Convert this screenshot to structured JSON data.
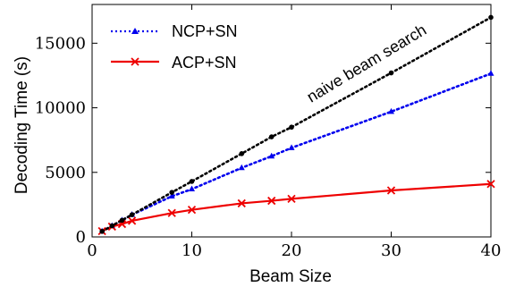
{
  "chart_data": {
    "type": "line",
    "xlabel": "Beam Size",
    "ylabel": "Decoding Time (s)",
    "xlim": [
      0,
      40
    ],
    "ylim": [
      0,
      18000
    ],
    "xticks": [
      "0",
      "10",
      "20",
      "30",
      "40"
    ],
    "yticks": [
      "0",
      "5000",
      "10000",
      "15000"
    ],
    "legend_position": "top-left",
    "annotation": "naive beam search",
    "series": [
      {
        "name": "NCP+SN",
        "color": "#0000ee",
        "style": "dotted",
        "marker": "triangle",
        "x": [
          1,
          2,
          3,
          4,
          8,
          10,
          15,
          18,
          20,
          30,
          40
        ],
        "y": [
          430,
          860,
          1290,
          1720,
          3150,
          3700,
          5350,
          6250,
          6900,
          9700,
          12650
        ]
      },
      {
        "name": "ACP+SN",
        "color": "#ee0000",
        "style": "solid",
        "marker": "x",
        "x": [
          1,
          2,
          3,
          4,
          8,
          10,
          15,
          18,
          20,
          30,
          40
        ],
        "y": [
          450,
          800,
          1000,
          1250,
          1850,
          2100,
          2600,
          2800,
          2950,
          3600,
          4100
        ]
      },
      {
        "color": "#000000",
        "style": "dotted",
        "marker": "dot",
        "x": [
          1,
          2,
          3,
          4,
          8,
          10,
          15,
          18,
          20,
          30,
          40
        ],
        "y": [
          430,
          860,
          1290,
          1720,
          3450,
          4300,
          6450,
          7750,
          8500,
          12700,
          17000
        ]
      }
    ]
  }
}
